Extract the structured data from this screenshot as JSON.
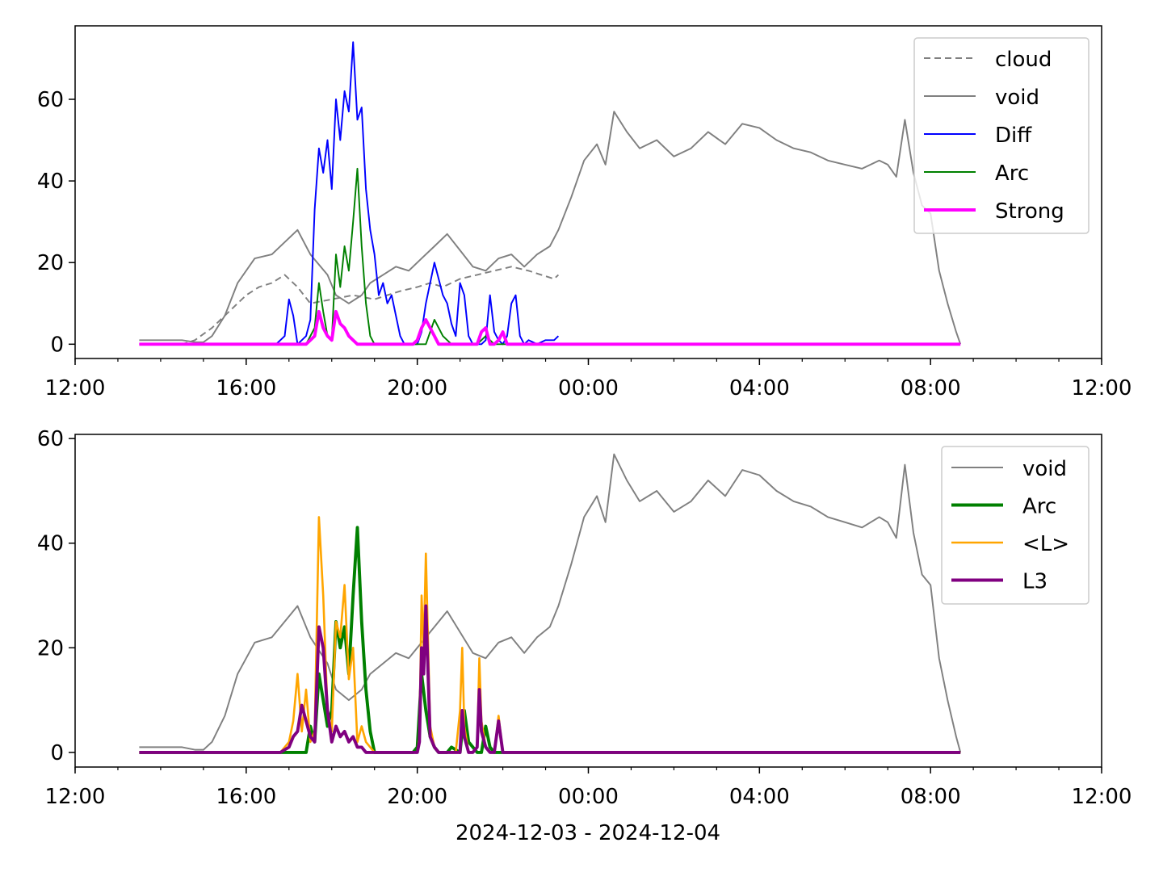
{
  "figure": {
    "xlabel": "2024-12-03 - 2024-12-04"
  },
  "chart_data": [
    {
      "type": "line",
      "x_unit": "hours since 2024-12-03 12:00",
      "xlim": [
        "12:00",
        "12:00"
      ],
      "xlim_hours": [
        0,
        24
      ],
      "x_ticks": [
        {
          "h": 0,
          "label": "12:00"
        },
        {
          "h": 4,
          "label": "16:00"
        },
        {
          "h": 8,
          "label": "20:00"
        },
        {
          "h": 12,
          "label": "00:00"
        },
        {
          "h": 16,
          "label": "04:00"
        },
        {
          "h": 20,
          "label": "08:00"
        },
        {
          "h": 24,
          "label": "12:00"
        }
      ],
      "ylim": [
        -3.5,
        78
      ],
      "y_ticks": [
        0,
        20,
        40,
        60
      ],
      "legend": "top-right",
      "series": [
        {
          "name": "cloud",
          "color": "#808080",
          "style": "dashed",
          "width": 1.5,
          "x": [
            1.5,
            2.5,
            2.8,
            3.2,
            3.6,
            4.0,
            4.3,
            4.6,
            4.9,
            5.2,
            5.5,
            6.0,
            6.5,
            7.0,
            7.3,
            7.6,
            8.0,
            8.3,
            8.6,
            9.0,
            9.4,
            9.8,
            10.2,
            10.6,
            10.9,
            11.2,
            11.3
          ],
          "y": [
            0,
            0,
            1,
            4,
            8,
            12,
            14,
            15,
            17,
            14,
            10,
            11,
            12,
            11,
            12,
            13,
            14,
            15,
            14,
            16,
            17,
            18,
            19,
            18,
            17,
            16,
            17
          ]
        },
        {
          "name": "void",
          "color": "#808080",
          "style": "solid",
          "width": 1.5,
          "x": [
            1.5,
            2.5,
            2.8,
            3.0,
            3.2,
            3.5,
            3.8,
            4.2,
            4.6,
            4.9,
            5.2,
            5.5,
            5.9,
            6.1,
            6.4,
            6.7,
            6.9,
            7.2,
            7.5,
            7.8,
            8.1,
            8.4,
            8.7,
            9.0,
            9.3,
            9.6,
            9.9,
            10.2,
            10.5,
            10.8,
            11.1,
            11.3,
            11.6,
            11.9,
            12.2,
            12.4,
            12.6,
            12.9,
            13.2,
            13.6,
            14.0,
            14.4,
            14.8,
            15.2,
            15.6,
            16.0,
            16.4,
            16.8,
            17.2,
            17.6,
            18.0,
            18.4,
            18.8,
            19.0,
            19.2,
            19.4,
            19.6,
            19.8,
            20.0,
            20.2,
            20.4,
            20.6,
            20.7
          ],
          "y": [
            1,
            1,
            0.5,
            0.5,
            2,
            7,
            15,
            21,
            22,
            25,
            28,
            22,
            17,
            12,
            10,
            12,
            15,
            17,
            19,
            18,
            21,
            24,
            27,
            23,
            19,
            18,
            21,
            22,
            19,
            22,
            24,
            28,
            36,
            45,
            49,
            44,
            57,
            52,
            48,
            50,
            46,
            48,
            52,
            49,
            54,
            53,
            50,
            48,
            47,
            45,
            44,
            43,
            45,
            44,
            41,
            55,
            42,
            34,
            32,
            18,
            10,
            3,
            0
          ]
        },
        {
          "name": "Diff",
          "color": "#0000ff",
          "style": "solid",
          "width": 1.5,
          "x": [
            4.7,
            4.9,
            5.0,
            5.1,
            5.2,
            5.3,
            5.4,
            5.5,
            5.6,
            5.7,
            5.8,
            5.9,
            6.0,
            6.1,
            6.2,
            6.3,
            6.4,
            6.5,
            6.6,
            6.7,
            6.8,
            6.9,
            7.0,
            7.1,
            7.2,
            7.3,
            7.4,
            7.5,
            7.6,
            7.7,
            7.8,
            7.9,
            8.0,
            8.1,
            8.2,
            8.4,
            8.6,
            8.7,
            8.8,
            8.9,
            9.0,
            9.1,
            9.2,
            9.3,
            9.4,
            9.5,
            9.6,
            9.7,
            9.8,
            9.9,
            10.0,
            10.1,
            10.2,
            10.3,
            10.4,
            10.5,
            10.6,
            10.8,
            11.0,
            11.2,
            11.3
          ],
          "y": [
            0,
            2,
            11,
            7,
            0,
            1,
            2,
            6,
            33,
            48,
            42,
            50,
            38,
            60,
            50,
            62,
            57,
            74,
            55,
            58,
            38,
            28,
            22,
            12,
            15,
            10,
            12,
            7,
            2,
            0,
            0,
            0,
            0,
            3,
            10,
            20,
            12,
            10,
            5,
            2,
            15,
            12,
            2,
            0,
            0,
            0,
            1,
            12,
            3,
            1,
            0,
            2,
            10,
            12,
            2,
            0,
            1,
            0,
            1,
            1,
            2
          ]
        },
        {
          "name": "Arc",
          "color": "#008000",
          "style": "solid",
          "width": 1.5,
          "x": [
            5.2,
            5.4,
            5.6,
            5.7,
            5.8,
            5.9,
            6.0,
            6.1,
            6.2,
            6.3,
            6.4,
            6.5,
            6.6,
            6.7,
            6.8,
            6.9,
            7.0,
            7.2,
            7.4,
            7.6,
            7.8,
            8.0,
            8.2,
            8.4,
            8.6,
            8.8,
            9.0,
            9.2,
            9.4,
            9.6,
            9.8,
            10.0,
            10.2,
            10.4,
            10.6
          ],
          "y": [
            0,
            0,
            4,
            15,
            8,
            2,
            1,
            22,
            14,
            24,
            18,
            30,
            43,
            24,
            10,
            2,
            0,
            0,
            0,
            0,
            0,
            0,
            0,
            6,
            2,
            0,
            0,
            0,
            0,
            2,
            0,
            0,
            0,
            0,
            0
          ]
        },
        {
          "name": "Strong",
          "color": "#ff00ff",
          "style": "solid",
          "width": 3,
          "x": [
            1.5,
            5.4,
            5.6,
            5.7,
            5.8,
            5.9,
            6.0,
            6.1,
            6.2,
            6.3,
            6.4,
            6.5,
            6.6,
            6.8,
            7.0,
            7.9,
            8.0,
            8.1,
            8.2,
            8.3,
            8.4,
            8.5,
            9.4,
            9.5,
            9.6,
            9.7,
            9.8,
            9.9,
            10.0,
            10.1,
            10.2,
            20.7
          ],
          "y": [
            0,
            0,
            2,
            8,
            4,
            2,
            1,
            8,
            5,
            4,
            2,
            1,
            0,
            0,
            0,
            0,
            1,
            4,
            6,
            4,
            2,
            0,
            0,
            3,
            4,
            0,
            0,
            1,
            3,
            0,
            0,
            0
          ]
        }
      ]
    },
    {
      "type": "line",
      "x_unit": "hours since 2024-12-03 12:00",
      "xlim": [
        "12:00",
        "12:00"
      ],
      "xlim_hours": [
        0,
        24
      ],
      "x_ticks": [
        {
          "h": 0,
          "label": "12:00"
        },
        {
          "h": 4,
          "label": "16:00"
        },
        {
          "h": 8,
          "label": "20:00"
        },
        {
          "h": 12,
          "label": "00:00"
        },
        {
          "h": 16,
          "label": "04:00"
        },
        {
          "h": 20,
          "label": "08:00"
        },
        {
          "h": 24,
          "label": "12:00"
        }
      ],
      "ylim": [
        -2.8,
        60.8
      ],
      "y_ticks": [
        0,
        20,
        40,
        60
      ],
      "legend": "top-right",
      "series": [
        {
          "name": "void",
          "color": "#808080",
          "style": "solid",
          "width": 1.5,
          "x": [
            1.5,
            2.5,
            2.8,
            3.0,
            3.2,
            3.5,
            3.8,
            4.2,
            4.6,
            4.9,
            5.2,
            5.5,
            5.9,
            6.1,
            6.4,
            6.7,
            6.9,
            7.2,
            7.5,
            7.8,
            8.1,
            8.4,
            8.7,
            9.0,
            9.3,
            9.6,
            9.9,
            10.2,
            10.5,
            10.8,
            11.1,
            11.3,
            11.6,
            11.9,
            12.2,
            12.4,
            12.6,
            12.9,
            13.2,
            13.6,
            14.0,
            14.4,
            14.8,
            15.2,
            15.6,
            16.0,
            16.4,
            16.8,
            17.2,
            17.6,
            18.0,
            18.4,
            18.8,
            19.0,
            19.2,
            19.4,
            19.6,
            19.8,
            20.0,
            20.2,
            20.4,
            20.6,
            20.7
          ],
          "y": [
            1,
            1,
            0.5,
            0.5,
            2,
            7,
            15,
            21,
            22,
            25,
            28,
            22,
            17,
            12,
            10,
            12,
            15,
            17,
            19,
            18,
            21,
            24,
            27,
            23,
            19,
            18,
            21,
            22,
            19,
            22,
            24,
            28,
            36,
            45,
            49,
            44,
            57,
            52,
            48,
            50,
            46,
            48,
            52,
            49,
            54,
            53,
            50,
            48,
            47,
            45,
            44,
            43,
            45,
            44,
            41,
            55,
            42,
            34,
            32,
            18,
            10,
            3,
            0
          ]
        },
        {
          "name": "Arc",
          "color": "#008000",
          "style": "solid",
          "width": 3,
          "x": [
            1.5,
            4.8,
            5.0,
            5.2,
            5.4,
            5.5,
            5.6,
            5.7,
            5.8,
            5.9,
            6.0,
            6.1,
            6.2,
            6.3,
            6.4,
            6.5,
            6.6,
            6.7,
            6.8,
            6.9,
            7.0,
            7.2,
            7.4,
            7.6,
            7.8,
            7.9,
            8.0,
            8.1,
            8.2,
            8.3,
            8.4,
            8.5,
            8.6,
            8.7,
            8.8,
            9.0,
            9.1,
            9.2,
            9.4,
            9.5,
            9.6,
            9.7,
            9.8,
            10.0,
            20.7
          ],
          "y": [
            0,
            0,
            0,
            0,
            0,
            5,
            2,
            15,
            10,
            5,
            8,
            25,
            20,
            24,
            15,
            30,
            43,
            25,
            12,
            4,
            0,
            0,
            0,
            0,
            0,
            0,
            1,
            15,
            8,
            3,
            1,
            0,
            0,
            0,
            1,
            0,
            8,
            2,
            0,
            0,
            5,
            1,
            0,
            0,
            0
          ]
        },
        {
          "name": "<L>",
          "color": "#ffa500",
          "style": "solid",
          "width": 2,
          "x": [
            1.5,
            4.8,
            5.0,
            5.1,
            5.2,
            5.3,
            5.4,
            5.5,
            5.6,
            5.7,
            5.8,
            5.9,
            6.0,
            6.1,
            6.2,
            6.3,
            6.4,
            6.5,
            6.6,
            6.7,
            6.8,
            6.9,
            7.0,
            7.6,
            7.8,
            7.9,
            8.0,
            8.05,
            8.1,
            8.15,
            8.2,
            8.3,
            8.4,
            8.5,
            8.6,
            8.7,
            8.8,
            8.9,
            9.0,
            9.05,
            9.1,
            9.2,
            9.3,
            9.4,
            9.45,
            9.5,
            9.6,
            9.7,
            9.8,
            9.9,
            10.0,
            20.7
          ],
          "y": [
            0,
            0,
            2,
            6,
            15,
            4,
            12,
            2,
            4,
            45,
            30,
            8,
            4,
            25,
            22,
            32,
            14,
            20,
            2,
            5,
            2,
            1,
            0,
            0,
            0,
            0,
            0,
            3,
            30,
            20,
            38,
            5,
            1,
            0,
            0,
            0,
            0,
            0,
            8,
            20,
            5,
            0,
            0,
            1,
            18,
            6,
            1,
            0,
            0,
            7,
            0,
            0
          ]
        },
        {
          "name": "L3",
          "color": "#800080",
          "style": "solid",
          "width": 3,
          "x": [
            1.5,
            4.8,
            5.0,
            5.1,
            5.2,
            5.3,
            5.4,
            5.5,
            5.6,
            5.7,
            5.8,
            5.9,
            6.0,
            6.1,
            6.2,
            6.3,
            6.4,
            6.5,
            6.6,
            6.7,
            6.8,
            7.0,
            7.6,
            7.8,
            7.9,
            8.0,
            8.05,
            8.1,
            8.15,
            8.2,
            8.3,
            8.4,
            8.5,
            8.6,
            8.7,
            8.8,
            8.9,
            9.0,
            9.05,
            9.1,
            9.2,
            9.3,
            9.4,
            9.45,
            9.5,
            9.6,
            9.7,
            9.8,
            9.9,
            10.0,
            20.7
          ],
          "y": [
            0,
            0,
            1,
            3,
            4,
            9,
            6,
            3,
            2,
            24,
            20,
            8,
            2,
            5,
            3,
            4,
            2,
            3,
            1,
            1,
            0,
            0,
            0,
            0,
            0,
            0,
            2,
            20,
            15,
            28,
            3,
            1,
            0,
            0,
            0,
            0,
            0,
            0,
            8,
            3,
            0,
            0,
            1,
            12,
            4,
            1,
            0,
            0,
            6,
            0,
            0
          ]
        }
      ]
    }
  ]
}
